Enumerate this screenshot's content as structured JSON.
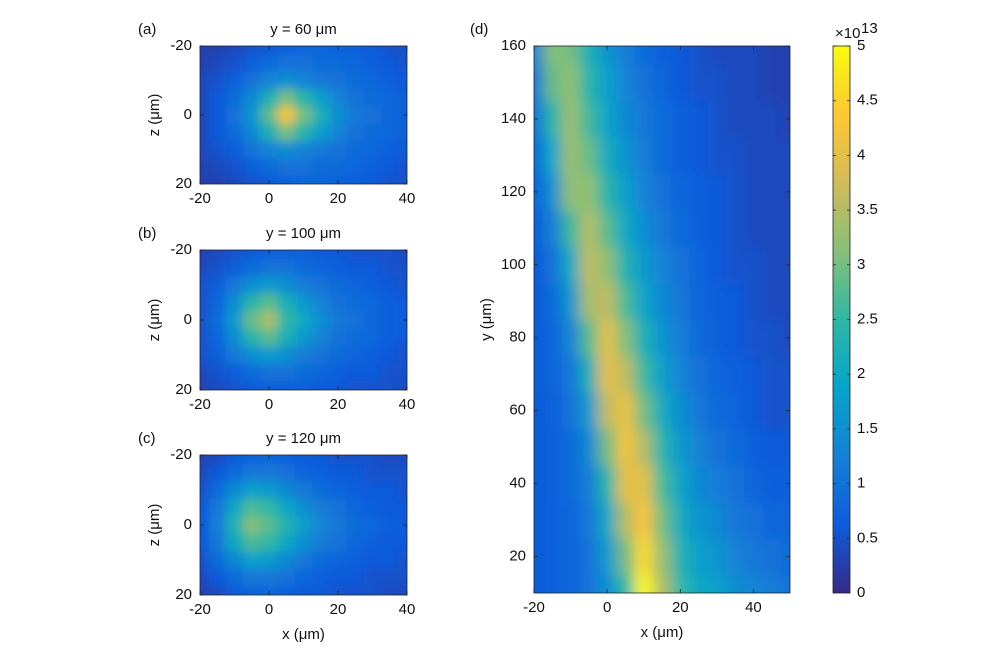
{
  "colormap": [
    "#352a87",
    "#0f5cdd",
    "#1481d6",
    "#06a4ca",
    "#2eb7a4",
    "#87bf77",
    "#d1bb59",
    "#fec832",
    "#f9fb0e"
  ],
  "chart_data": [
    {
      "type": "heatmap",
      "panel_label": "(a)",
      "title": "y = 60 μm",
      "ylabel": "z (μm)",
      "x": [
        -20,
        -15,
        -10,
        -5,
        0,
        5,
        10,
        15,
        20,
        25,
        30,
        35,
        40
      ],
      "y": [
        -20,
        -15,
        -10,
        -5,
        0,
        5,
        10,
        15,
        20
      ],
      "z": [
        [
          0.3,
          0.3,
          0.4,
          0.5,
          0.6,
          0.7,
          0.8,
          0.8,
          0.7,
          0.7,
          0.6,
          0.5,
          0.5
        ],
        [
          0.3,
          0.4,
          0.5,
          0.7,
          0.9,
          1.0,
          1.0,
          0.9,
          0.9,
          0.8,
          0.7,
          0.6,
          0.5
        ],
        [
          0.4,
          0.5,
          0.7,
          1.0,
          1.3,
          1.5,
          1.3,
          1.1,
          1.0,
          0.9,
          0.8,
          0.7,
          0.6
        ],
        [
          0.4,
          0.6,
          0.9,
          1.4,
          2.2,
          3.0,
          2.4,
          1.8,
          1.3,
          1.0,
          0.9,
          0.8,
          0.7
        ],
        [
          0.4,
          0.6,
          1.0,
          1.6,
          2.8,
          4.2,
          3.0,
          2.2,
          1.5,
          1.1,
          1.0,
          0.8,
          0.7
        ],
        [
          0.4,
          0.6,
          0.9,
          1.4,
          2.2,
          3.0,
          2.4,
          1.8,
          1.3,
          1.0,
          0.9,
          0.8,
          0.7
        ],
        [
          0.4,
          0.5,
          0.7,
          1.0,
          1.3,
          1.5,
          1.3,
          1.1,
          1.0,
          0.9,
          0.8,
          0.7,
          0.6
        ],
        [
          0.3,
          0.4,
          0.5,
          0.7,
          0.9,
          1.0,
          1.0,
          0.9,
          0.9,
          0.8,
          0.7,
          0.6,
          0.5
        ],
        [
          0.3,
          0.3,
          0.4,
          0.5,
          0.6,
          0.7,
          0.8,
          0.8,
          0.7,
          0.7,
          0.6,
          0.5,
          0.5
        ]
      ],
      "xlim": [
        -20,
        40
      ],
      "xticks": [
        -20,
        0,
        20,
        40
      ],
      "ylim": [
        20,
        -20
      ],
      "yticks": [
        -20,
        0,
        20
      ]
    },
    {
      "type": "heatmap",
      "panel_label": "(b)",
      "title": "y = 100 μm",
      "ylabel": "z (μm)",
      "x": [
        -20,
        -15,
        -10,
        -5,
        0,
        5,
        10,
        15,
        20,
        25,
        30,
        35,
        40
      ],
      "y": [
        -20,
        -15,
        -10,
        -5,
        0,
        5,
        10,
        15,
        20
      ],
      "z": [
        [
          0.3,
          0.4,
          0.5,
          0.6,
          0.7,
          0.7,
          0.7,
          0.6,
          0.6,
          0.5,
          0.5,
          0.5,
          0.4
        ],
        [
          0.4,
          0.5,
          0.7,
          0.9,
          1.0,
          1.0,
          0.9,
          0.8,
          0.7,
          0.6,
          0.6,
          0.5,
          0.5
        ],
        [
          0.5,
          0.7,
          1.1,
          1.5,
          1.7,
          1.5,
          1.2,
          1.0,
          0.9,
          0.8,
          0.7,
          0.6,
          0.5
        ],
        [
          0.5,
          0.8,
          1.5,
          2.4,
          2.8,
          2.2,
          1.7,
          1.3,
          1.0,
          0.9,
          0.8,
          0.7,
          0.6
        ],
        [
          0.5,
          0.9,
          1.7,
          2.9,
          3.4,
          2.5,
          2.0,
          1.5,
          1.1,
          1.0,
          0.8,
          0.7,
          0.6
        ],
        [
          0.5,
          0.8,
          1.5,
          2.4,
          2.8,
          2.2,
          1.7,
          1.3,
          1.0,
          0.9,
          0.8,
          0.7,
          0.6
        ],
        [
          0.5,
          0.7,
          1.1,
          1.5,
          1.7,
          1.5,
          1.2,
          1.0,
          0.9,
          0.8,
          0.7,
          0.6,
          0.5
        ],
        [
          0.4,
          0.5,
          0.7,
          0.9,
          1.0,
          1.0,
          0.9,
          0.8,
          0.7,
          0.6,
          0.6,
          0.5,
          0.5
        ],
        [
          0.3,
          0.4,
          0.5,
          0.6,
          0.7,
          0.7,
          0.7,
          0.6,
          0.6,
          0.5,
          0.5,
          0.5,
          0.4
        ]
      ],
      "xlim": [
        -20,
        40
      ],
      "xticks": [
        -20,
        0,
        20,
        40
      ],
      "ylim": [
        20,
        -20
      ],
      "yticks": [
        -20,
        0,
        20
      ]
    },
    {
      "type": "heatmap",
      "panel_label": "(c)",
      "title": "y = 120 μm",
      "ylabel": "z (μm)",
      "xlabel": "x (μm)",
      "x": [
        -20,
        -15,
        -10,
        -5,
        0,
        5,
        10,
        15,
        20,
        25,
        30,
        35,
        40
      ],
      "y": [
        -20,
        -15,
        -10,
        -5,
        0,
        5,
        10,
        15,
        20
      ],
      "z": [
        [
          0.3,
          0.4,
          0.6,
          0.7,
          0.8,
          0.7,
          0.6,
          0.6,
          0.5,
          0.5,
          0.5,
          0.4,
          0.4
        ],
        [
          0.4,
          0.6,
          0.9,
          1.1,
          1.1,
          1.0,
          0.8,
          0.7,
          0.6,
          0.6,
          0.5,
          0.5,
          0.5
        ],
        [
          0.5,
          0.9,
          1.4,
          1.8,
          1.7,
          1.4,
          1.1,
          0.9,
          0.8,
          0.7,
          0.6,
          0.6,
          0.5
        ],
        [
          0.6,
          1.1,
          2.0,
          2.7,
          2.5,
          2.0,
          1.5,
          1.2,
          1.0,
          0.8,
          0.7,
          0.6,
          0.6
        ],
        [
          0.6,
          1.2,
          2.3,
          3.1,
          2.8,
          2.3,
          1.8,
          1.3,
          1.1,
          0.9,
          0.8,
          0.7,
          0.6
        ],
        [
          0.6,
          1.1,
          2.0,
          2.7,
          2.5,
          2.0,
          1.5,
          1.2,
          1.0,
          0.8,
          0.7,
          0.6,
          0.6
        ],
        [
          0.5,
          0.9,
          1.4,
          1.8,
          1.7,
          1.4,
          1.1,
          0.9,
          0.8,
          0.7,
          0.6,
          0.6,
          0.5
        ],
        [
          0.4,
          0.6,
          0.9,
          1.1,
          1.1,
          1.0,
          0.8,
          0.7,
          0.6,
          0.6,
          0.5,
          0.5,
          0.5
        ],
        [
          0.3,
          0.4,
          0.6,
          0.7,
          0.8,
          0.7,
          0.6,
          0.6,
          0.5,
          0.5,
          0.5,
          0.4,
          0.4
        ]
      ],
      "xlim": [
        -20,
        40
      ],
      "xticks": [
        -20,
        0,
        20,
        40
      ],
      "ylim": [
        20,
        -20
      ],
      "yticks": [
        -20,
        0,
        20
      ]
    },
    {
      "type": "heatmap",
      "panel_label": "(d)",
      "xlabel": "x (μm)",
      "ylabel": "y (μm)",
      "x": [
        -20,
        -15,
        -10,
        -5,
        0,
        5,
        10,
        15,
        20,
        25,
        30,
        35,
        40,
        45,
        50
      ],
      "y": [
        10,
        20,
        30,
        40,
        50,
        60,
        70,
        80,
        90,
        100,
        110,
        120,
        130,
        140,
        150,
        160
      ],
      "z": [
        [
          0.6,
          0.7,
          0.8,
          1.0,
          1.5,
          2.5,
          5.0,
          3.5,
          2.5,
          2.0,
          1.8,
          1.5,
          1.3,
          1.2,
          1.0
        ],
        [
          0.6,
          0.7,
          0.8,
          1.0,
          1.7,
          3.0,
          4.6,
          3.3,
          2.3,
          1.8,
          1.6,
          1.3,
          1.1,
          1.0,
          0.9
        ],
        [
          0.6,
          0.7,
          0.8,
          1.1,
          2.0,
          3.5,
          4.3,
          3.0,
          2.1,
          1.6,
          1.4,
          1.1,
          1.0,
          0.8,
          0.8
        ],
        [
          0.6,
          0.7,
          0.9,
          1.2,
          2.4,
          4.0,
          4.0,
          2.7,
          1.9,
          1.4,
          1.2,
          1.0,
          0.8,
          0.7,
          0.7
        ],
        [
          0.6,
          0.7,
          0.9,
          1.4,
          3.0,
          4.2,
          3.5,
          2.4,
          1.7,
          1.3,
          1.0,
          0.9,
          0.7,
          0.6,
          0.6
        ],
        [
          0.6,
          0.7,
          1.0,
          1.7,
          3.6,
          4.1,
          3.0,
          2.1,
          1.5,
          1.1,
          0.9,
          0.8,
          0.6,
          0.5,
          0.5
        ],
        [
          0.6,
          0.8,
          1.1,
          2.2,
          4.0,
          3.6,
          2.6,
          1.8,
          1.3,
          1.0,
          0.8,
          0.7,
          0.6,
          0.5,
          0.5
        ],
        [
          0.6,
          0.8,
          1.3,
          2.8,
          4.0,
          3.1,
          2.2,
          1.6,
          1.2,
          0.9,
          0.7,
          0.6,
          0.5,
          0.5,
          0.4
        ],
        [
          0.6,
          0.9,
          1.6,
          3.4,
          3.6,
          2.7,
          1.9,
          1.4,
          1.1,
          0.8,
          0.7,
          0.6,
          0.5,
          0.4,
          0.4
        ],
        [
          0.6,
          1.0,
          2.0,
          3.6,
          3.2,
          2.3,
          1.7,
          1.3,
          1.0,
          0.8,
          0.6,
          0.5,
          0.5,
          0.4,
          0.4
        ],
        [
          0.7,
          1.2,
          2.6,
          3.5,
          2.8,
          2.0,
          1.5,
          1.1,
          0.9,
          0.7,
          0.6,
          0.5,
          0.4,
          0.4,
          0.4
        ],
        [
          0.8,
          1.5,
          3.2,
          3.2,
          2.4,
          1.8,
          1.3,
          1.0,
          0.8,
          0.7,
          0.6,
          0.5,
          0.4,
          0.4,
          0.4
        ],
        [
          0.9,
          1.9,
          3.3,
          2.9,
          2.1,
          1.6,
          1.2,
          0.9,
          0.7,
          0.6,
          0.5,
          0.5,
          0.4,
          0.4,
          0.4
        ],
        [
          1.0,
          2.4,
          3.3,
          2.6,
          1.9,
          1.4,
          1.1,
          0.9,
          0.7,
          0.6,
          0.5,
          0.4,
          0.4,
          0.4,
          0.3
        ],
        [
          1.1,
          2.9,
          3.2,
          2.4,
          1.8,
          1.3,
          1.0,
          0.8,
          0.6,
          0.5,
          0.5,
          0.4,
          0.4,
          0.3,
          0.3
        ],
        [
          1.3,
          3.1,
          3.0,
          2.2,
          1.6,
          1.2,
          0.9,
          0.7,
          0.6,
          0.5,
          0.4,
          0.4,
          0.4,
          0.3,
          0.3
        ]
      ],
      "xlim": [
        -20,
        50
      ],
      "xticks": [
        -20,
        0,
        20,
        40
      ],
      "ylim": [
        10,
        160
      ],
      "yticks": [
        20,
        40,
        60,
        80,
        100,
        120,
        140,
        160
      ],
      "colorbar": {
        "lim": [
          0,
          5
        ],
        "ticks": [
          0,
          0.5,
          1,
          1.5,
          2,
          2.5,
          3,
          3.5,
          4,
          4.5,
          5
        ],
        "multiplier": "×10",
        "exponent": "13"
      }
    }
  ]
}
